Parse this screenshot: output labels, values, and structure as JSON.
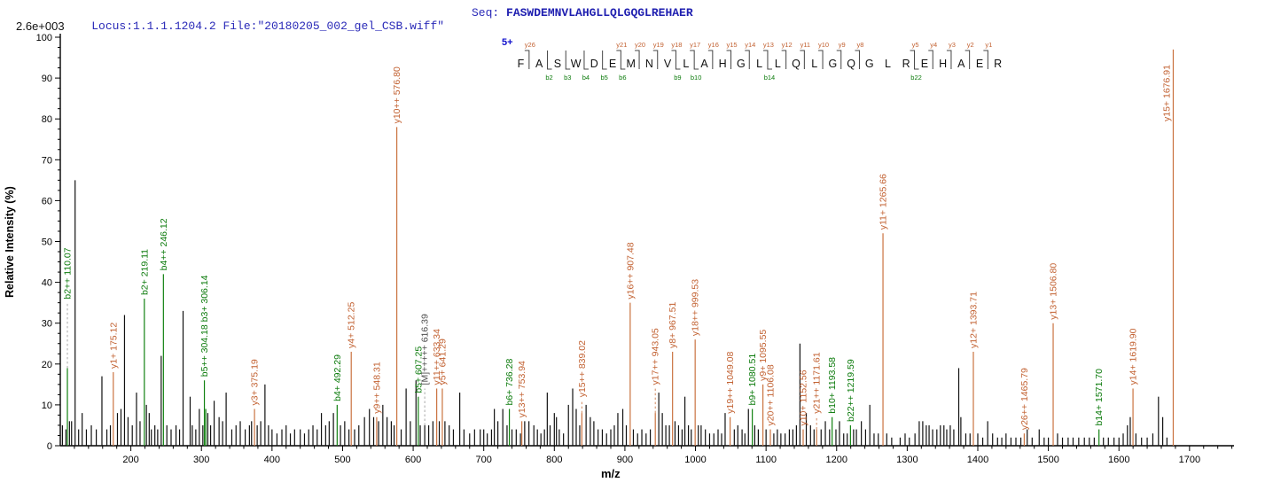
{
  "header": {
    "locus_file": "Locus:1.1.1.1204.2 File:\"20180205_002_gel_CSB.wiff\"",
    "seq_label": "Seq: ",
    "sequence": "FASWDEMNVLAHGLLQLGQGLREHAER"
  },
  "scale_label": "2.6e+003",
  "colors": {
    "header_text": "#2a2ab8",
    "sequence_text": "#1f1fb0",
    "y_ion": "#c26131",
    "y_ion_line": "#ca7340",
    "b_ion": "#0a7a0a",
    "b_ion_line": "#118111",
    "peak": "#101010",
    "precursor_label": "#4d4d4d",
    "precursor_dash": "#9a9a9a",
    "axis": "#000000",
    "charge_label": "#1111cc",
    "fragment_mark": "#444444"
  },
  "peptide_panel": {
    "charge_label": "5+",
    "residues": [
      "F",
      "A",
      "S",
      "W",
      "D",
      "E",
      "M",
      "N",
      "V",
      "L",
      "A",
      "H",
      "G",
      "L",
      "L",
      "Q",
      "L",
      "G",
      "Q",
      "G",
      "L",
      "R",
      "E",
      "H",
      "A",
      "E",
      "R"
    ],
    "sites": [
      {
        "y": "y26",
        "b": null
      },
      {
        "y": null,
        "b": "b2"
      },
      {
        "y": null,
        "b": "b3"
      },
      {
        "y": null,
        "b": "b4"
      },
      {
        "y": null,
        "b": "b5"
      },
      {
        "y": "y21",
        "b": "b6"
      },
      {
        "y": "y20",
        "b": null
      },
      {
        "y": "y19",
        "b": null
      },
      {
        "y": "y18",
        "b": "b9"
      },
      {
        "y": "y17",
        "b": "b10"
      },
      {
        "y": "y16",
        "b": null
      },
      {
        "y": "y15",
        "b": null
      },
      {
        "y": "y14",
        "b": null
      },
      {
        "y": "y13",
        "b": "b14"
      },
      {
        "y": "y12",
        "b": null
      },
      {
        "y": "y11",
        "b": null
      },
      {
        "y": "y10",
        "b": null
      },
      {
        "y": "y9",
        "b": null
      },
      {
        "y": "y8",
        "b": null
      },
      {
        "y": null,
        "b": null
      },
      {
        "y": null,
        "b": null
      },
      {
        "y": "y5",
        "b": "b22"
      },
      {
        "y": "y4",
        "b": null
      },
      {
        "y": "y3",
        "b": null
      },
      {
        "y": "y2",
        "b": null
      },
      {
        "y": "y1",
        "b": null
      }
    ]
  },
  "chart_data": {
    "type": "bar",
    "subtype": "ms2-fragment-spectrum",
    "title": "",
    "xlabel": "m/z",
    "ylabel": "Relative  Intensity (%)",
    "xlim": [
      100,
      1763
    ],
    "ylim": [
      0,
      100
    ],
    "x_ticks": [
      200,
      300,
      400,
      500,
      600,
      700,
      800,
      900,
      1000,
      1100,
      1200,
      1300,
      1400,
      1500,
      1600,
      1700
    ],
    "y_ticks": [
      0,
      10,
      20,
      30,
      40,
      50,
      60,
      70,
      80,
      90,
      100
    ],
    "x_minor_step": 20,
    "y_minor_step": 2.5,
    "labeled_peaks": [
      {
        "mz": 110.07,
        "intensity": 19,
        "label": "b2++ 110.07",
        "series": "b",
        "dash_to": 35
      },
      {
        "mz": 175.12,
        "intensity": 18,
        "label": "y1+ 175.12",
        "series": "y"
      },
      {
        "mz": 219.11,
        "intensity": 36,
        "label": "b2+ 219.11",
        "series": "b"
      },
      {
        "mz": 246.12,
        "intensity": 42,
        "label": "b4++ 246.12",
        "series": "b"
      },
      {
        "mz": 304.18,
        "intensity": 16,
        "label": "b5++ 304.18  b3+ 306.14",
        "series": "b"
      },
      {
        "mz": 306.14,
        "intensity": 9,
        "label": "",
        "series": "b"
      },
      {
        "mz": 375.19,
        "intensity": 9,
        "label": "y3+ 375.19",
        "series": "y"
      },
      {
        "mz": 492.29,
        "intensity": 10,
        "label": "b4+ 492.29",
        "series": "b"
      },
      {
        "mz": 512.25,
        "intensity": 23,
        "label": "y4+ 512.25",
        "series": "y"
      },
      {
        "mz": 548.31,
        "intensity": 7,
        "label": "y9++ 548.31",
        "series": "y"
      },
      {
        "mz": 576.8,
        "intensity": 78,
        "label": "y10++ 576.80",
        "series": "y"
      },
      {
        "mz": 607.25,
        "intensity": 12,
        "label": "b5+ 607.25",
        "series": "b"
      },
      {
        "mz": 616.39,
        "intensity": 5,
        "label": "[M]+++++ 616.39",
        "series": "precursor",
        "dash_to": 14
      },
      {
        "mz": 633.34,
        "intensity": 14,
        "label": "y11++ 633.34",
        "series": "y"
      },
      {
        "mz": 641.29,
        "intensity": 14,
        "label": "y5+ 641.29",
        "series": "y"
      },
      {
        "mz": 736.28,
        "intensity": 9,
        "label": "b6+ 736.28",
        "series": "b"
      },
      {
        "mz": 753.94,
        "intensity": 6,
        "label": "y13++ 753.94",
        "series": "y"
      },
      {
        "mz": 839.02,
        "intensity": 8,
        "label": "y15++ 839.02",
        "series": "y",
        "dash_to": 11
      },
      {
        "mz": 907.48,
        "intensity": 35,
        "label": "y16++ 907.48",
        "series": "y"
      },
      {
        "mz": 943.05,
        "intensity": 8,
        "label": "y17++ 943.05",
        "series": "y",
        "dash_to": 14
      },
      {
        "mz": 967.51,
        "intensity": 23,
        "label": "y8+ 967.51",
        "series": "y"
      },
      {
        "mz": 999.53,
        "intensity": 26,
        "label": "y18++ 999.53",
        "series": "y"
      },
      {
        "mz": 1049.08,
        "intensity": 7,
        "label": "y19++ 1049.08",
        "series": "y"
      },
      {
        "mz": 1080.51,
        "intensity": 9,
        "label": "b9+ 1080.51",
        "series": "b"
      },
      {
        "mz": 1095.55,
        "intensity": 15,
        "label": "y9+ 1095.55",
        "series": "y"
      },
      {
        "mz": 1106.08,
        "intensity": 4,
        "label": "y20++ 1106.08",
        "series": "y"
      },
      {
        "mz": 1152.56,
        "intensity": 4,
        "label": "y10+ 1152.56",
        "series": "y"
      },
      {
        "mz": 1171.61,
        "intensity": 4,
        "label": "y21++ 1171.61",
        "series": "y",
        "dash_to": 7
      },
      {
        "mz": 1193.58,
        "intensity": 7,
        "label": "b10+ 1193.58",
        "series": "b"
      },
      {
        "mz": 1219.59,
        "intensity": 5,
        "label": "b22++ 1219.59",
        "series": "b"
      },
      {
        "mz": 1265.66,
        "intensity": 52,
        "label": "y11+ 1265.66",
        "series": "y"
      },
      {
        "mz": 1393.71,
        "intensity": 23,
        "label": "y12+ 1393.71",
        "series": "y"
      },
      {
        "mz": 1465.79,
        "intensity": 3,
        "label": "y26++ 1465.79",
        "series": "y"
      },
      {
        "mz": 1506.8,
        "intensity": 30,
        "label": "y13+ 1506.80",
        "series": "y"
      },
      {
        "mz": 1571.7,
        "intensity": 4,
        "label": "b14+ 1571.70",
        "series": "b"
      },
      {
        "mz": 1619.9,
        "intensity": 14,
        "label": "y14+ 1619.90",
        "series": "y"
      },
      {
        "mz": 1676.91,
        "intensity": 97,
        "label": "y15+ 1676.91",
        "series": "y",
        "beside": true
      }
    ],
    "unlabeled_peaks": [
      [
        103,
        5
      ],
      [
        108,
        4
      ],
      [
        113,
        6
      ],
      [
        116,
        6
      ],
      [
        121,
        65
      ],
      [
        126,
        4
      ],
      [
        131,
        8
      ],
      [
        137,
        4
      ],
      [
        144,
        5
      ],
      [
        151,
        4
      ],
      [
        159,
        17
      ],
      [
        166,
        4
      ],
      [
        171,
        5
      ],
      [
        181,
        8
      ],
      [
        186,
        9
      ],
      [
        191,
        32
      ],
      [
        196,
        7
      ],
      [
        202,
        5
      ],
      [
        208,
        13
      ],
      [
        213,
        6
      ],
      [
        222,
        10
      ],
      [
        226,
        8
      ],
      [
        229,
        4
      ],
      [
        234,
        5
      ],
      [
        238,
        4
      ],
      [
        243,
        22
      ],
      [
        251,
        5
      ],
      [
        257,
        4
      ],
      [
        264,
        5
      ],
      [
        269,
        4
      ],
      [
        274,
        33
      ],
      [
        284,
        12
      ],
      [
        287,
        5
      ],
      [
        292,
        4
      ],
      [
        297,
        9
      ],
      [
        302,
        5
      ],
      [
        309,
        8
      ],
      [
        313,
        5
      ],
      [
        318,
        11
      ],
      [
        325,
        7
      ],
      [
        330,
        6
      ],
      [
        335,
        13
      ],
      [
        343,
        4
      ],
      [
        349,
        5
      ],
      [
        355,
        6
      ],
      [
        362,
        4
      ],
      [
        368,
        5
      ],
      [
        371,
        6
      ],
      [
        379,
        5
      ],
      [
        384,
        6
      ],
      [
        390,
        15
      ],
      [
        395,
        5
      ],
      [
        400,
        4
      ],
      [
        407,
        3
      ],
      [
        414,
        4
      ],
      [
        420,
        5
      ],
      [
        426,
        3
      ],
      [
        432,
        4
      ],
      [
        440,
        4
      ],
      [
        446,
        3
      ],
      [
        452,
        4
      ],
      [
        458,
        5
      ],
      [
        464,
        4
      ],
      [
        470,
        8
      ],
      [
        476,
        5
      ],
      [
        481,
        6
      ],
      [
        487,
        8
      ],
      [
        497,
        5
      ],
      [
        503,
        6
      ],
      [
        509,
        4
      ],
      [
        517,
        4
      ],
      [
        523,
        5
      ],
      [
        531,
        7
      ],
      [
        538,
        9
      ],
      [
        544,
        7
      ],
      [
        551,
        6
      ],
      [
        557,
        10
      ],
      [
        563,
        7
      ],
      [
        569,
        6
      ],
      [
        573,
        5
      ],
      [
        583,
        4
      ],
      [
        590,
        14
      ],
      [
        596,
        6
      ],
      [
        604,
        16
      ],
      [
        610,
        5
      ],
      [
        622,
        5
      ],
      [
        628,
        6
      ],
      [
        637,
        6
      ],
      [
        645,
        6
      ],
      [
        651,
        5
      ],
      [
        657,
        4
      ],
      [
        666,
        13
      ],
      [
        672,
        4
      ],
      [
        680,
        3
      ],
      [
        687,
        4
      ],
      [
        695,
        4
      ],
      [
        700,
        4
      ],
      [
        705,
        3
      ],
      [
        711,
        4
      ],
      [
        715,
        9
      ],
      [
        720,
        6
      ],
      [
        727,
        9
      ],
      [
        733,
        5
      ],
      [
        740,
        4
      ],
      [
        746,
        4
      ],
      [
        752,
        3
      ],
      [
        758,
        6
      ],
      [
        764,
        6
      ],
      [
        771,
        5
      ],
      [
        776,
        4
      ],
      [
        781,
        3
      ],
      [
        786,
        4
      ],
      [
        790,
        13
      ],
      [
        794,
        5
      ],
      [
        800,
        8
      ],
      [
        803,
        7
      ],
      [
        807,
        4
      ],
      [
        813,
        3
      ],
      [
        820,
        10
      ],
      [
        826,
        14
      ],
      [
        831,
        9
      ],
      [
        836,
        5
      ],
      [
        845,
        10
      ],
      [
        851,
        7
      ],
      [
        856,
        6
      ],
      [
        862,
        4
      ],
      [
        868,
        4
      ],
      [
        874,
        3
      ],
      [
        880,
        4
      ],
      [
        885,
        5
      ],
      [
        890,
        8
      ],
      [
        897,
        9
      ],
      [
        902,
        5
      ],
      [
        912,
        4
      ],
      [
        918,
        3
      ],
      [
        924,
        4
      ],
      [
        930,
        3
      ],
      [
        936,
        4
      ],
      [
        948,
        13
      ],
      [
        953,
        8
      ],
      [
        958,
        5
      ],
      [
        963,
        5
      ],
      [
        971,
        6
      ],
      [
        976,
        5
      ],
      [
        981,
        4
      ],
      [
        985,
        12
      ],
      [
        990,
        5
      ],
      [
        994,
        4
      ],
      [
        1004,
        5
      ],
      [
        1008,
        5
      ],
      [
        1014,
        4
      ],
      [
        1020,
        3
      ],
      [
        1026,
        3
      ],
      [
        1032,
        4
      ],
      [
        1037,
        3
      ],
      [
        1042,
        8
      ],
      [
        1055,
        4
      ],
      [
        1060,
        5
      ],
      [
        1066,
        4
      ],
      [
        1070,
        3
      ],
      [
        1075,
        9
      ],
      [
        1084,
        5
      ],
      [
        1089,
        4
      ],
      [
        1100,
        4
      ],
      [
        1111,
        3
      ],
      [
        1116,
        4
      ],
      [
        1121,
        3
      ],
      [
        1127,
        3
      ],
      [
        1133,
        4
      ],
      [
        1138,
        4
      ],
      [
        1143,
        5
      ],
      [
        1148,
        25
      ],
      [
        1157,
        8
      ],
      [
        1163,
        5
      ],
      [
        1168,
        4
      ],
      [
        1178,
        4
      ],
      [
        1184,
        6
      ],
      [
        1190,
        4
      ],
      [
        1199,
        4
      ],
      [
        1204,
        6
      ],
      [
        1210,
        3
      ],
      [
        1215,
        3
      ],
      [
        1224,
        4
      ],
      [
        1228,
        4
      ],
      [
        1235,
        6
      ],
      [
        1241,
        4
      ],
      [
        1247,
        10
      ],
      [
        1253,
        3
      ],
      [
        1259,
        3
      ],
      [
        1271,
        3
      ],
      [
        1278,
        2
      ],
      [
        1290,
        2
      ],
      [
        1297,
        3
      ],
      [
        1303,
        2
      ],
      [
        1311,
        3
      ],
      [
        1317,
        6
      ],
      [
        1322,
        6
      ],
      [
        1327,
        5
      ],
      [
        1331,
        5
      ],
      [
        1336,
        4
      ],
      [
        1342,
        4
      ],
      [
        1347,
        5
      ],
      [
        1352,
        5
      ],
      [
        1356,
        4
      ],
      [
        1361,
        5
      ],
      [
        1366,
        4
      ],
      [
        1373,
        19
      ],
      [
        1376,
        7
      ],
      [
        1383,
        3
      ],
      [
        1389,
        3
      ],
      [
        1400,
        3
      ],
      [
        1407,
        2
      ],
      [
        1414,
        6
      ],
      [
        1421,
        3
      ],
      [
        1428,
        2
      ],
      [
        1434,
        2
      ],
      [
        1440,
        3
      ],
      [
        1447,
        2
      ],
      [
        1454,
        2
      ],
      [
        1461,
        2
      ],
      [
        1470,
        4
      ],
      [
        1477,
        2
      ],
      [
        1487,
        4
      ],
      [
        1494,
        2
      ],
      [
        1500,
        2
      ],
      [
        1513,
        3
      ],
      [
        1520,
        2
      ],
      [
        1528,
        2
      ],
      [
        1535,
        2
      ],
      [
        1543,
        2
      ],
      [
        1551,
        2
      ],
      [
        1558,
        2
      ],
      [
        1565,
        2
      ],
      [
        1578,
        2
      ],
      [
        1585,
        2
      ],
      [
        1593,
        2
      ],
      [
        1600,
        2
      ],
      [
        1606,
        3
      ],
      [
        1612,
        5
      ],
      [
        1616,
        7
      ],
      [
        1624,
        3
      ],
      [
        1632,
        2
      ],
      [
        1640,
        2
      ],
      [
        1648,
        3
      ],
      [
        1656,
        12
      ],
      [
        1662,
        7
      ],
      [
        1668,
        2
      ]
    ]
  }
}
